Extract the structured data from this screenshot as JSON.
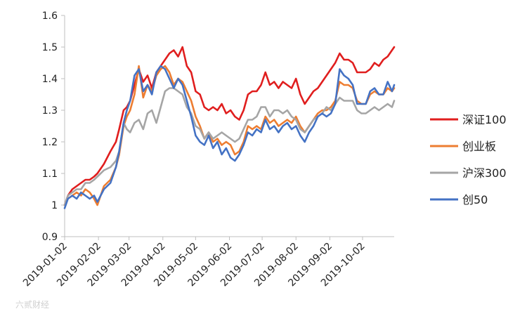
{
  "chart_data": {
    "type": "line",
    "title": "",
    "xlabel": "",
    "ylabel": "",
    "ylim": [
      0.9,
      1.6
    ],
    "yticks": [
      "1.6",
      "1.5",
      "1.4",
      "1.3",
      "1.2",
      "1.1",
      "1",
      "0.9"
    ],
    "xlim": [
      "2019-01-02",
      "2019-10-31"
    ],
    "xticks": [
      "2019-01-02",
      "2019-02-02",
      "2019-03-02",
      "2019-04-02",
      "2019-05-02",
      "2019-06-02",
      "2019-07-02",
      "2019-08-02",
      "2019-09-02",
      "2019-10-02"
    ],
    "grid": false,
    "legend_position": "right",
    "series": [
      {
        "name": "深证100",
        "color": "#e01e1e",
        "x": [
          "2019-01-02",
          "2019-01-05",
          "2019-01-09",
          "2019-01-13",
          "2019-01-17",
          "2019-01-21",
          "2019-01-25",
          "2019-01-29",
          "2019-02-01",
          "2019-02-07",
          "2019-02-13",
          "2019-02-18",
          "2019-02-21",
          "2019-02-25",
          "2019-02-28",
          "2019-03-03",
          "2019-03-07",
          "2019-03-11",
          "2019-03-15",
          "2019-03-19",
          "2019-03-23",
          "2019-03-27",
          "2019-03-31",
          "2019-04-04",
          "2019-04-08",
          "2019-04-12",
          "2019-04-16",
          "2019-04-20",
          "2019-04-24",
          "2019-04-28",
          "2019-05-02",
          "2019-05-06",
          "2019-05-10",
          "2019-05-14",
          "2019-05-18",
          "2019-05-22",
          "2019-05-26",
          "2019-05-30",
          "2019-06-03",
          "2019-06-07",
          "2019-06-11",
          "2019-06-15",
          "2019-06-19",
          "2019-06-23",
          "2019-06-27",
          "2019-07-01",
          "2019-07-05",
          "2019-07-09",
          "2019-07-13",
          "2019-07-17",
          "2019-07-21",
          "2019-07-25",
          "2019-07-29",
          "2019-08-02",
          "2019-08-06",
          "2019-08-10",
          "2019-08-14",
          "2019-08-18",
          "2019-08-22",
          "2019-08-26",
          "2019-08-30",
          "2019-09-03",
          "2019-09-07",
          "2019-09-11",
          "2019-09-15",
          "2019-09-19",
          "2019-09-23",
          "2019-09-27",
          "2019-10-01",
          "2019-10-05",
          "2019-10-09",
          "2019-10-13",
          "2019-10-17",
          "2019-10-21",
          "2019-10-25",
          "2019-10-29",
          "2019-10-31"
        ],
        "values": [
          1.0,
          1.03,
          1.05,
          1.06,
          1.07,
          1.08,
          1.08,
          1.09,
          1.1,
          1.13,
          1.17,
          1.2,
          1.24,
          1.3,
          1.31,
          1.33,
          1.38,
          1.43,
          1.39,
          1.41,
          1.37,
          1.42,
          1.44,
          1.46,
          1.48,
          1.49,
          1.47,
          1.5,
          1.44,
          1.42,
          1.36,
          1.35,
          1.31,
          1.3,
          1.31,
          1.3,
          1.32,
          1.29,
          1.3,
          1.28,
          1.27,
          1.3,
          1.35,
          1.36,
          1.36,
          1.38,
          1.42,
          1.38,
          1.39,
          1.37,
          1.39,
          1.38,
          1.37,
          1.4,
          1.35,
          1.32,
          1.34,
          1.36,
          1.37,
          1.39,
          1.41,
          1.43,
          1.45,
          1.48,
          1.46,
          1.46,
          1.45,
          1.42,
          1.42,
          1.42,
          1.43,
          1.45,
          1.44,
          1.46,
          1.47,
          1.49,
          1.5
        ]
      },
      {
        "name": "创业板",
        "color": "#ed7d31",
        "x": [
          "2019-01-02",
          "2019-01-05",
          "2019-01-09",
          "2019-01-13",
          "2019-01-17",
          "2019-01-21",
          "2019-01-25",
          "2019-01-29",
          "2019-02-01",
          "2019-02-07",
          "2019-02-13",
          "2019-02-18",
          "2019-02-21",
          "2019-02-25",
          "2019-02-28",
          "2019-03-03",
          "2019-03-07",
          "2019-03-11",
          "2019-03-15",
          "2019-03-19",
          "2019-03-23",
          "2019-03-27",
          "2019-03-31",
          "2019-04-04",
          "2019-04-08",
          "2019-04-12",
          "2019-04-16",
          "2019-04-20",
          "2019-04-24",
          "2019-04-28",
          "2019-05-02",
          "2019-05-06",
          "2019-05-10",
          "2019-05-14",
          "2019-05-18",
          "2019-05-22",
          "2019-05-26",
          "2019-05-30",
          "2019-06-03",
          "2019-06-07",
          "2019-06-11",
          "2019-06-15",
          "2019-06-19",
          "2019-06-23",
          "2019-06-27",
          "2019-07-01",
          "2019-07-05",
          "2019-07-09",
          "2019-07-13",
          "2019-07-17",
          "2019-07-21",
          "2019-07-25",
          "2019-07-29",
          "2019-08-02",
          "2019-08-06",
          "2019-08-10",
          "2019-08-14",
          "2019-08-18",
          "2019-08-22",
          "2019-08-26",
          "2019-08-30",
          "2019-09-03",
          "2019-09-07",
          "2019-09-11",
          "2019-09-15",
          "2019-09-19",
          "2019-09-23",
          "2019-09-27",
          "2019-10-01",
          "2019-10-05",
          "2019-10-09",
          "2019-10-13",
          "2019-10-17",
          "2019-10-21",
          "2019-10-25",
          "2019-10-29",
          "2019-10-31"
        ],
        "values": [
          1.0,
          1.02,
          1.03,
          1.04,
          1.03,
          1.05,
          1.04,
          1.02,
          1.0,
          1.06,
          1.08,
          1.12,
          1.16,
          1.25,
          1.28,
          1.3,
          1.35,
          1.44,
          1.34,
          1.38,
          1.36,
          1.41,
          1.43,
          1.44,
          1.42,
          1.38,
          1.4,
          1.39,
          1.36,
          1.33,
          1.28,
          1.25,
          1.21,
          1.23,
          1.2,
          1.21,
          1.19,
          1.2,
          1.19,
          1.16,
          1.17,
          1.2,
          1.25,
          1.24,
          1.25,
          1.24,
          1.28,
          1.26,
          1.27,
          1.25,
          1.26,
          1.27,
          1.26,
          1.28,
          1.25,
          1.23,
          1.25,
          1.27,
          1.29,
          1.3,
          1.3,
          1.31,
          1.33,
          1.39,
          1.38,
          1.38,
          1.37,
          1.33,
          1.32,
          1.32,
          1.35,
          1.36,
          1.35,
          1.35,
          1.37,
          1.36,
          1.37
        ]
      },
      {
        "name": "沪深300",
        "color": "#a5a5a5",
        "x": [
          "2019-01-02",
          "2019-01-05",
          "2019-01-09",
          "2019-01-13",
          "2019-01-17",
          "2019-01-21",
          "2019-01-25",
          "2019-01-29",
          "2019-02-01",
          "2019-02-07",
          "2019-02-13",
          "2019-02-18",
          "2019-02-21",
          "2019-02-25",
          "2019-02-28",
          "2019-03-03",
          "2019-03-07",
          "2019-03-11",
          "2019-03-15",
          "2019-03-19",
          "2019-03-23",
          "2019-03-27",
          "2019-03-31",
          "2019-04-04",
          "2019-04-08",
          "2019-04-12",
          "2019-04-16",
          "2019-04-20",
          "2019-04-24",
          "2019-04-28",
          "2019-05-02",
          "2019-05-06",
          "2019-05-10",
          "2019-05-14",
          "2019-05-18",
          "2019-05-22",
          "2019-05-26",
          "2019-05-30",
          "2019-06-03",
          "2019-06-07",
          "2019-06-11",
          "2019-06-15",
          "2019-06-19",
          "2019-06-23",
          "2019-06-27",
          "2019-07-01",
          "2019-07-05",
          "2019-07-09",
          "2019-07-13",
          "2019-07-17",
          "2019-07-21",
          "2019-07-25",
          "2019-07-29",
          "2019-08-02",
          "2019-08-06",
          "2019-08-10",
          "2019-08-14",
          "2019-08-18",
          "2019-08-22",
          "2019-08-26",
          "2019-08-30",
          "2019-09-03",
          "2019-09-07",
          "2019-09-11",
          "2019-09-15",
          "2019-09-19",
          "2019-09-23",
          "2019-09-27",
          "2019-10-01",
          "2019-10-05",
          "2019-10-09",
          "2019-10-13",
          "2019-10-17",
          "2019-10-21",
          "2019-10-25",
          "2019-10-29",
          "2019-10-31"
        ],
        "values": [
          1.0,
          1.03,
          1.04,
          1.05,
          1.05,
          1.07,
          1.07,
          1.08,
          1.09,
          1.11,
          1.12,
          1.14,
          1.17,
          1.26,
          1.24,
          1.23,
          1.26,
          1.27,
          1.24,
          1.29,
          1.3,
          1.26,
          1.31,
          1.36,
          1.37,
          1.37,
          1.36,
          1.35,
          1.31,
          1.29,
          1.25,
          1.24,
          1.21,
          1.23,
          1.21,
          1.22,
          1.23,
          1.22,
          1.21,
          1.2,
          1.21,
          1.24,
          1.27,
          1.27,
          1.28,
          1.31,
          1.31,
          1.28,
          1.3,
          1.3,
          1.29,
          1.3,
          1.28,
          1.27,
          1.24,
          1.23,
          1.25,
          1.27,
          1.28,
          1.29,
          1.31,
          1.3,
          1.32,
          1.34,
          1.33,
          1.33,
          1.33,
          1.3,
          1.29,
          1.29,
          1.3,
          1.31,
          1.3,
          1.31,
          1.32,
          1.31,
          1.33
        ]
      },
      {
        "name": "创50",
        "color": "#4472c4",
        "x": [
          "2019-01-02",
          "2019-01-05",
          "2019-01-09",
          "2019-01-13",
          "2019-01-17",
          "2019-01-21",
          "2019-01-25",
          "2019-01-29",
          "2019-02-01",
          "2019-02-07",
          "2019-02-13",
          "2019-02-18",
          "2019-02-21",
          "2019-02-25",
          "2019-02-28",
          "2019-03-03",
          "2019-03-07",
          "2019-03-11",
          "2019-03-15",
          "2019-03-19",
          "2019-03-23",
          "2019-03-27",
          "2019-03-31",
          "2019-04-04",
          "2019-04-08",
          "2019-04-12",
          "2019-04-16",
          "2019-04-20",
          "2019-04-24",
          "2019-04-28",
          "2019-05-02",
          "2019-05-06",
          "2019-05-10",
          "2019-05-14",
          "2019-05-18",
          "2019-05-22",
          "2019-05-26",
          "2019-05-30",
          "2019-06-03",
          "2019-06-07",
          "2019-06-11",
          "2019-06-15",
          "2019-06-19",
          "2019-06-23",
          "2019-06-27",
          "2019-07-01",
          "2019-07-05",
          "2019-07-09",
          "2019-07-13",
          "2019-07-17",
          "2019-07-21",
          "2019-07-25",
          "2019-07-29",
          "2019-08-02",
          "2019-08-06",
          "2019-08-10",
          "2019-08-14",
          "2019-08-18",
          "2019-08-22",
          "2019-08-26",
          "2019-08-30",
          "2019-09-03",
          "2019-09-07",
          "2019-09-11",
          "2019-09-15",
          "2019-09-19",
          "2019-09-23",
          "2019-09-27",
          "2019-10-01",
          "2019-10-05",
          "2019-10-09",
          "2019-10-13",
          "2019-10-17",
          "2019-10-21",
          "2019-10-25",
          "2019-10-29",
          "2019-10-31"
        ],
        "values": [
          0.99,
          1.02,
          1.03,
          1.02,
          1.04,
          1.03,
          1.02,
          1.03,
          1.01,
          1.05,
          1.07,
          1.12,
          1.17,
          1.26,
          1.3,
          1.33,
          1.41,
          1.43,
          1.36,
          1.38,
          1.35,
          1.42,
          1.44,
          1.43,
          1.4,
          1.37,
          1.4,
          1.38,
          1.33,
          1.28,
          1.22,
          1.2,
          1.19,
          1.22,
          1.18,
          1.2,
          1.16,
          1.18,
          1.15,
          1.14,
          1.16,
          1.19,
          1.23,
          1.22,
          1.24,
          1.23,
          1.27,
          1.24,
          1.25,
          1.23,
          1.25,
          1.26,
          1.24,
          1.25,
          1.22,
          1.2,
          1.23,
          1.25,
          1.28,
          1.29,
          1.28,
          1.29,
          1.32,
          1.43,
          1.41,
          1.4,
          1.38,
          1.32,
          1.32,
          1.32,
          1.36,
          1.37,
          1.35,
          1.35,
          1.39,
          1.36,
          1.38
        ]
      }
    ]
  },
  "watermark": {
    "text": "六贰财经"
  }
}
